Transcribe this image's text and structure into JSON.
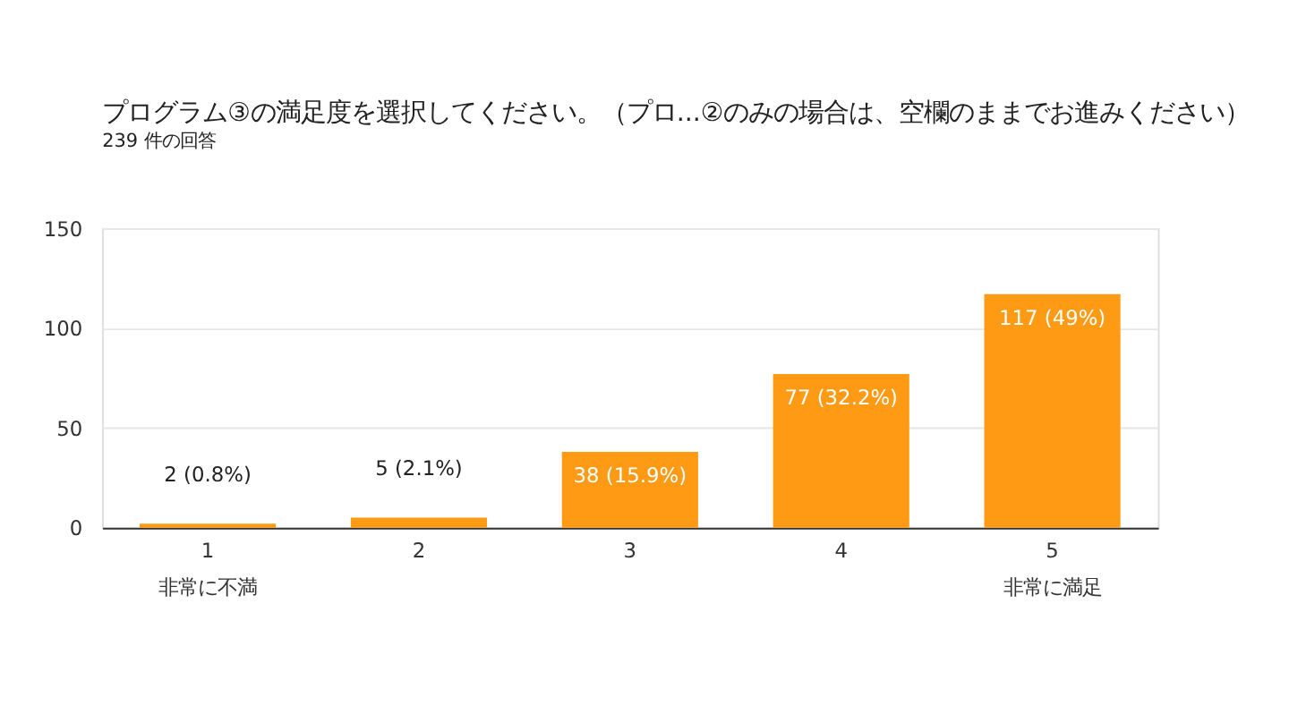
{
  "chart_data": {
    "type": "bar",
    "title": "プログラム③の満足度を選択してください。（プロ...②のみの場合は、空欄のままでお進みください）",
    "subtitle": "239 件の回答",
    "categories": [
      "1",
      "2",
      "3",
      "4",
      "5"
    ],
    "values": [
      2,
      5,
      38,
      77,
      117
    ],
    "value_labels": [
      "2 (0.8%)",
      "5 (2.1%)",
      "38 (15.9%)",
      "77 (32.2%)",
      "117 (49%)"
    ],
    "color": "#ff9a14",
    "ylim": [
      0,
      150
    ],
    "yticks": [
      0,
      50,
      100,
      150
    ],
    "grid": "y",
    "annotations": [
      "非常に不満",
      "非常に満足"
    ]
  }
}
